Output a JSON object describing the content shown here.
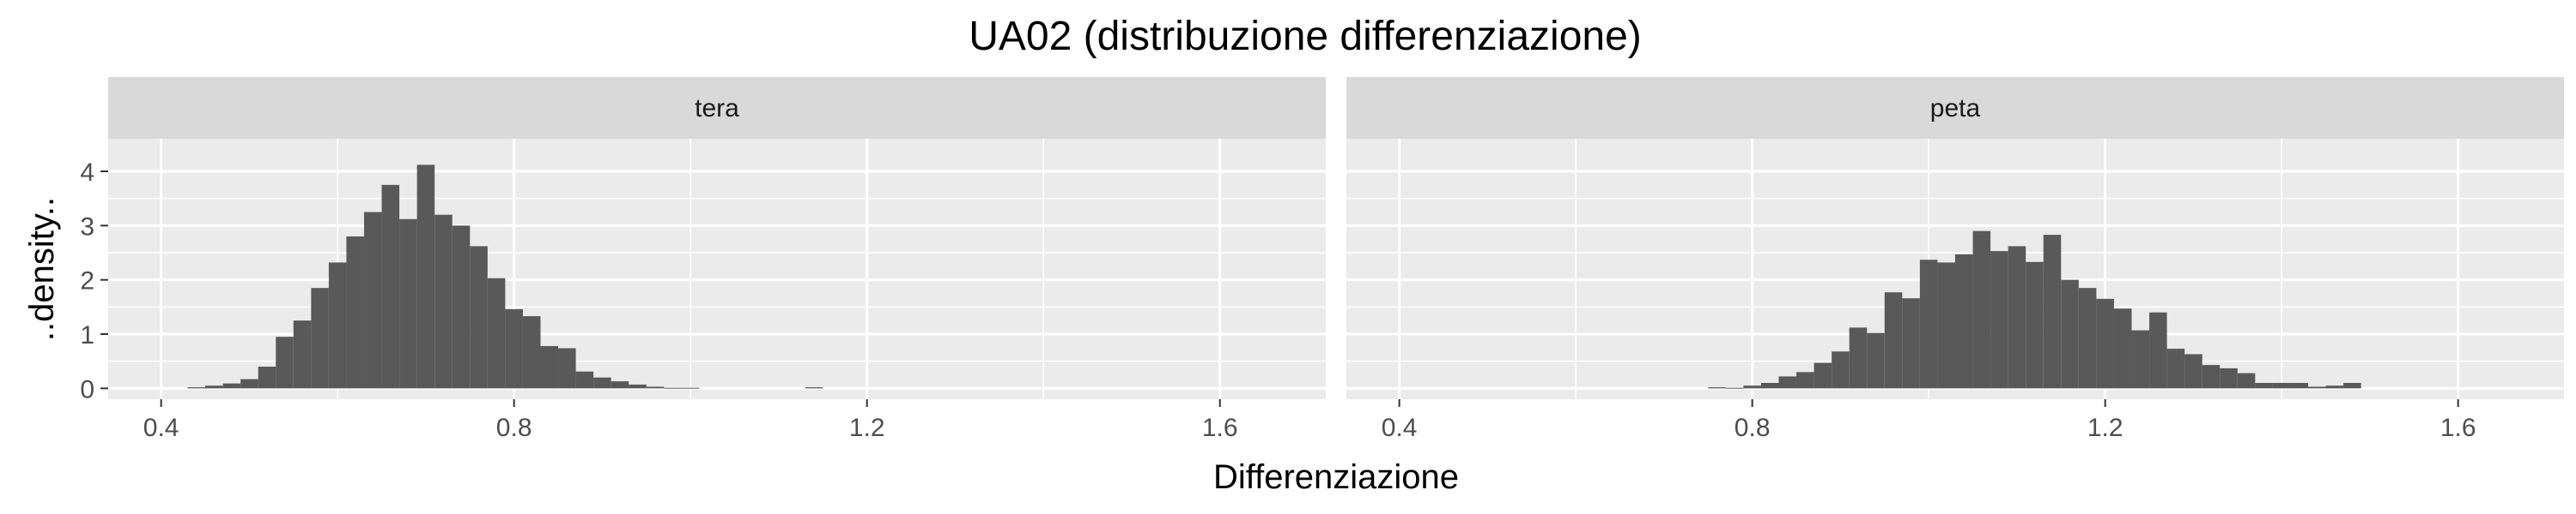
{
  "chart_data": {
    "type": "bar",
    "title": "UA02 (distribuzione differenziazione)",
    "xlabel": "Differenziazione",
    "ylabel": "..density..",
    "xlim": [
      0.34,
      1.72
    ],
    "ylim": [
      -0.2,
      4.6
    ],
    "x_ticks": [
      0.4,
      0.8,
      1.2,
      1.6
    ],
    "x_tick_labels": [
      "0.4",
      "0.8",
      "1.2",
      "1.6"
    ],
    "y_ticks": [
      0,
      1,
      2,
      3,
      4
    ],
    "y_tick_labels": [
      "0",
      "1",
      "2",
      "3",
      "4"
    ],
    "bin_width": 0.02,
    "grid": true,
    "bar_color": "#595959",
    "panel_background": "#ebebeb",
    "strip_background": "#d9d9d9",
    "panels": [
      {
        "label": "tera",
        "bins": [
          {
            "x": 0.44,
            "y": 0.02
          },
          {
            "x": 0.46,
            "y": 0.05
          },
          {
            "x": 0.48,
            "y": 0.09
          },
          {
            "x": 0.5,
            "y": 0.17
          },
          {
            "x": 0.52,
            "y": 0.4
          },
          {
            "x": 0.54,
            "y": 0.95
          },
          {
            "x": 0.56,
            "y": 1.25
          },
          {
            "x": 0.58,
            "y": 1.85
          },
          {
            "x": 0.6,
            "y": 2.32
          },
          {
            "x": 0.62,
            "y": 2.8
          },
          {
            "x": 0.64,
            "y": 3.25
          },
          {
            "x": 0.66,
            "y": 3.75
          },
          {
            "x": 0.68,
            "y": 3.12
          },
          {
            "x": 0.7,
            "y": 4.12
          },
          {
            "x": 0.72,
            "y": 3.2
          },
          {
            "x": 0.74,
            "y": 3.0
          },
          {
            "x": 0.76,
            "y": 2.62
          },
          {
            "x": 0.78,
            "y": 2.03
          },
          {
            "x": 0.8,
            "y": 1.46
          },
          {
            "x": 0.82,
            "y": 1.33
          },
          {
            "x": 0.84,
            "y": 0.78
          },
          {
            "x": 0.86,
            "y": 0.74
          },
          {
            "x": 0.88,
            "y": 0.31
          },
          {
            "x": 0.9,
            "y": 0.2
          },
          {
            "x": 0.92,
            "y": 0.13
          },
          {
            "x": 0.94,
            "y": 0.07
          },
          {
            "x": 0.96,
            "y": 0.03
          },
          {
            "x": 0.98,
            "y": 0.01
          },
          {
            "x": 1.0,
            "y": 0.01
          },
          {
            "x": 1.14,
            "y": 0.02
          }
        ]
      },
      {
        "label": "peta",
        "bins": [
          {
            "x": 0.76,
            "y": 0.02
          },
          {
            "x": 0.78,
            "y": 0.01
          },
          {
            "x": 0.8,
            "y": 0.05
          },
          {
            "x": 0.82,
            "y": 0.1
          },
          {
            "x": 0.84,
            "y": 0.22
          },
          {
            "x": 0.86,
            "y": 0.3
          },
          {
            "x": 0.88,
            "y": 0.47
          },
          {
            "x": 0.9,
            "y": 0.68
          },
          {
            "x": 0.92,
            "y": 1.12
          },
          {
            "x": 0.94,
            "y": 1.02
          },
          {
            "x": 0.96,
            "y": 1.77
          },
          {
            "x": 0.98,
            "y": 1.66
          },
          {
            "x": 1.0,
            "y": 2.37
          },
          {
            "x": 1.02,
            "y": 2.32
          },
          {
            "x": 1.04,
            "y": 2.47
          },
          {
            "x": 1.06,
            "y": 2.9
          },
          {
            "x": 1.08,
            "y": 2.53
          },
          {
            "x": 1.1,
            "y": 2.62
          },
          {
            "x": 1.12,
            "y": 2.33
          },
          {
            "x": 1.14,
            "y": 2.83
          },
          {
            "x": 1.16,
            "y": 2.0
          },
          {
            "x": 1.18,
            "y": 1.85
          },
          {
            "x": 1.2,
            "y": 1.65
          },
          {
            "x": 1.22,
            "y": 1.47
          },
          {
            "x": 1.24,
            "y": 1.07
          },
          {
            "x": 1.26,
            "y": 1.4
          },
          {
            "x": 1.28,
            "y": 0.73
          },
          {
            "x": 1.3,
            "y": 0.63
          },
          {
            "x": 1.32,
            "y": 0.43
          },
          {
            "x": 1.34,
            "y": 0.37
          },
          {
            "x": 1.36,
            "y": 0.28
          },
          {
            "x": 1.38,
            "y": 0.1
          },
          {
            "x": 1.4,
            "y": 0.1
          },
          {
            "x": 1.42,
            "y": 0.1
          },
          {
            "x": 1.44,
            "y": 0.03
          },
          {
            "x": 1.46,
            "y": 0.05
          },
          {
            "x": 1.48,
            "y": 0.1
          }
        ]
      }
    ]
  }
}
